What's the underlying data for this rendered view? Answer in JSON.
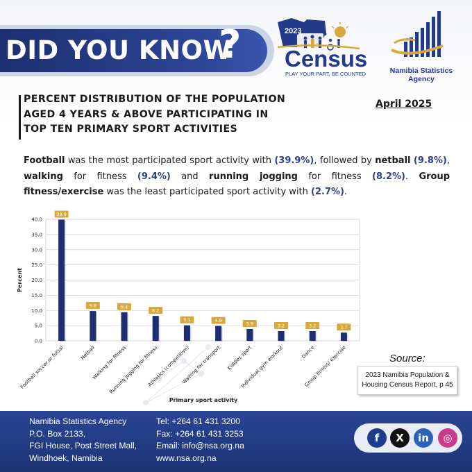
{
  "banner": {
    "text": "DID YOU KNOW",
    "mark": "?"
  },
  "census_logo": {
    "year": "2023",
    "word": "Census",
    "tagline": "PLAY YOUR PART, BE COUNTED"
  },
  "nsa_logo": {
    "line1": "Namibia Statistics",
    "line2": "Agency"
  },
  "title_lines": [
    "PERCENT DISTRIBUTION OF THE POPULATION",
    "AGED 4 YEARS & ABOVE PARTICIPATING IN",
    "TOP TEN PRIMARY SPORT ACTIVITIES"
  ],
  "date": "April 2025",
  "summary": {
    "s1": "Football",
    "s2": " was the most participated sport activity with ",
    "s3": "(39.9%)",
    "s4": ", followed by ",
    "s5": "netball",
    "s6": " ",
    "s7": "(9.8%)",
    "s8": ", ",
    "s9": "walking",
    "s10": " for fitness ",
    "s11": "(9.4%)",
    "s12": " and ",
    "s13": "running jogging",
    "s14": " for fitness ",
    "s15": "(8.2%)",
    "s16": ". ",
    "s17": "Group fitness/exercise",
    "s18": " was the least participated sport activity with ",
    "s19": "(2.7%)",
    "s20": "."
  },
  "chart_data": {
    "type": "bar",
    "categories": [
      "Football soccer or futsal",
      "Netball",
      "Walking for fitness",
      "Running jogging for fitness",
      "Athletics (competitive)",
      "Walking for transport",
      "Kiddies sport",
      "Individual gym workout",
      "Dance",
      "Group fitness/ exercise"
    ],
    "values": [
      39.9,
      9.8,
      9.4,
      8.2,
      5.1,
      4.9,
      3.9,
      3.2,
      3.2,
      2.7
    ],
    "value_labels": [
      "39.9",
      "9.8",
      "9.4",
      "8.2",
      "5.1",
      "4.9",
      "3.9",
      "3.2",
      "3.2",
      "2.7"
    ],
    "title": "",
    "xlabel": "Primary sport activity",
    "ylabel": "Percent",
    "ylim": [
      0,
      40
    ],
    "yticks": [
      "0.0",
      "5.0",
      "10.0",
      "15.0",
      "20.0",
      "25.0",
      "30.0",
      "35.0",
      "40.0"
    ],
    "grid": true,
    "legend": "none",
    "bar_color": "#1f2e6e",
    "label_color": "#d7a93c"
  },
  "source": {
    "label": "Source:",
    "line1": "2023 Namibia Population &",
    "line2": "Housing Census Report, p 45"
  },
  "footer": {
    "address": [
      "Namibia Statistics Agency",
      "P.O. Box 2133,",
      "FGI House, Post Street Mall,",
      "Windhoek, Namibia"
    ],
    "contact": [
      "Tel: +264 61 431 3200",
      "Fax: +264 61 431 3253",
      "Email:  info@nsa.org.na",
      "www.nsa.org.na"
    ]
  },
  "social": [
    {
      "icon": "facebook-icon",
      "glyph": "f",
      "color": "#1f3c8c"
    },
    {
      "icon": "x-icon",
      "glyph": "X",
      "color": "#111111"
    },
    {
      "icon": "linkedin-icon",
      "glyph": "in",
      "color": "#2a62b7"
    },
    {
      "icon": "instagram-icon",
      "glyph": "◎",
      "color": "#c83a8a"
    }
  ],
  "colors": {
    "primary": "#233a8b",
    "gold": "#d7a93c"
  }
}
